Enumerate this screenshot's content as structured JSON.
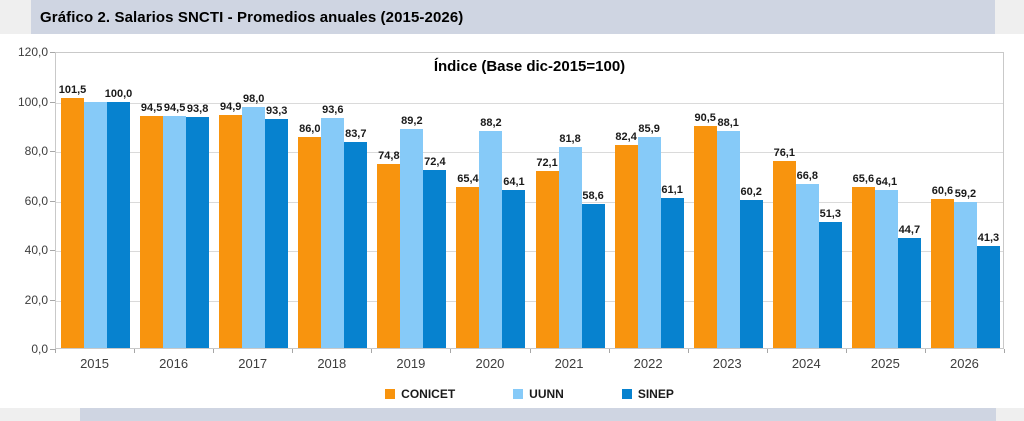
{
  "header": {
    "title": "Gráfico 2. Salarios SNCTI - Promedios anuales (2015-2026)"
  },
  "chart_data": {
    "type": "bar",
    "title": "Índice (Base dic-2015=100)",
    "categories": [
      "2015",
      "2016",
      "2017",
      "2018",
      "2019",
      "2020",
      "2021",
      "2022",
      "2023",
      "2024",
      "2025",
      "2026"
    ],
    "series": [
      {
        "name": "CONICET",
        "color": "#F8940E",
        "values": [
          101.5,
          94.5,
          94.9,
          86.0,
          74.8,
          65.4,
          72.1,
          82.4,
          90.5,
          76.1,
          65.6,
          60.6
        ],
        "labels": [
          "101,5",
          "94,5",
          "94,9",
          "86,0",
          "74,8",
          "65,4",
          "72,1",
          "82,4",
          "90,5",
          "76,1",
          "65,6",
          "60,6"
        ]
      },
      {
        "name": "UUNN",
        "color": "#86CAF8",
        "values": [
          100.0,
          94.5,
          98.0,
          93.6,
          89.2,
          88.2,
          81.8,
          85.9,
          88.1,
          66.8,
          64.1,
          59.2
        ],
        "labels": [
          "",
          "94,5",
          "98,0",
          "93,6",
          "89,2",
          "88,2",
          "81,8",
          "85,9",
          "88,1",
          "66,8",
          "64,1",
          "59,2"
        ]
      },
      {
        "name": "SINEP",
        "color": "#0782CF",
        "values": [
          100.0,
          93.8,
          93.3,
          83.7,
          72.4,
          64.1,
          58.6,
          61.1,
          60.2,
          51.3,
          44.7,
          41.3
        ],
        "labels": [
          "100,0",
          "93,8",
          "93,3",
          "83,7",
          "72,4",
          "64,1",
          "58,6",
          "61,1",
          "60,2",
          "51,3",
          "44,7",
          "41,3"
        ]
      }
    ],
    "ylim": [
      0,
      120
    ],
    "ytick_labels": [
      "120,0",
      "100,0",
      "80,0",
      "60,0",
      "40,0",
      "20,0",
      "0,0"
    ],
    "grid": true,
    "legend_position": "bottom",
    "xlabel": "",
    "ylabel": ""
  },
  "colors": {
    "header_band": "#CFD5E2",
    "page_gray": "#EFEFEF",
    "gridline": "#DADADA"
  }
}
